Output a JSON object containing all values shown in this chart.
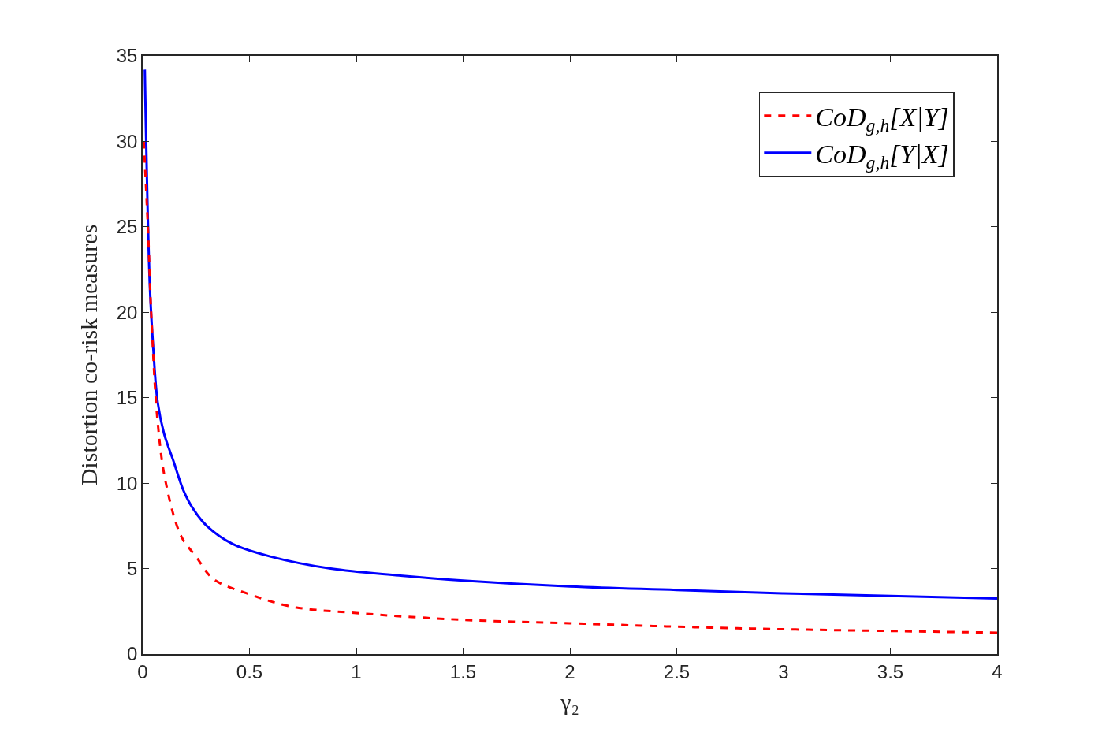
{
  "chart_data": {
    "type": "line",
    "xlabel": "γ₂",
    "ylabel": "Distortion co-risk measures",
    "xlim": [
      0,
      4
    ],
    "ylim": [
      0,
      35
    ],
    "xticks": [
      0,
      0.5,
      1,
      1.5,
      2,
      2.5,
      3,
      3.5,
      4
    ],
    "yticks": [
      0,
      5,
      10,
      15,
      20,
      25,
      30,
      35
    ],
    "legend": "top right",
    "series": [
      {
        "name": "CoD$_{g,h}$[X|Y]",
        "color": "#ff0000",
        "line_style": "dashed",
        "x": [
          0.005,
          0.024,
          0.042,
          0.07,
          0.107,
          0.18,
          0.25,
          0.33,
          0.5,
          0.7,
          1,
          1.5,
          2,
          2.5,
          3,
          3.5,
          4
        ],
        "values": [
          30,
          25.1,
          19.4,
          13.6,
          10.1,
          6.9,
          5.7,
          4.4,
          3.5,
          2.77,
          2.4,
          2.0,
          1.8,
          1.6,
          1.45,
          1.35,
          1.25
        ]
      },
      {
        "name": "CoD$_{g,h}$[Y|X]",
        "color": "#0000ff",
        "line_style": "solid",
        "x": [
          0.01,
          0.033,
          0.05,
          0.07,
          0.1,
          0.144,
          0.19,
          0.236,
          0.3,
          0.42,
          0.6,
          0.88,
          1.2,
          1.5,
          2,
          2.5,
          3,
          3.5,
          4
        ],
        "values": [
          34.2,
          21.7,
          17.8,
          14.75,
          12.9,
          11.3,
          9.6,
          8.5,
          7.5,
          6.45,
          5.7,
          5.0,
          4.6,
          4.3,
          3.95,
          3.75,
          3.55,
          3.4,
          3.25
        ]
      }
    ]
  }
}
